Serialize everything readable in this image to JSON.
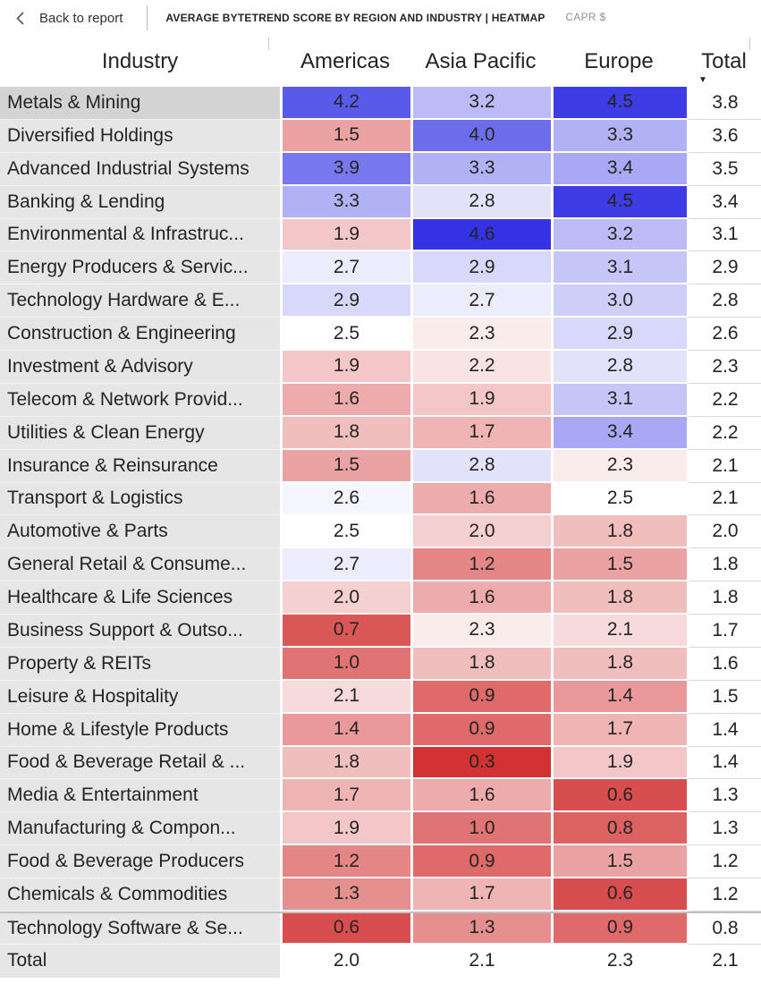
{
  "top_bar": {
    "back_label": "Back to report",
    "title": "AVERAGE BYTETREND SCORE BY REGION AND INDUSTRY | HEATMAP",
    "badge": "CAPR $"
  },
  "matrix": {
    "row_header": "Industry",
    "sort": {
      "column": "Total",
      "direction": "descending",
      "icon": "▼"
    },
    "highlighted_row_index": 0
  },
  "chart_data": {
    "type": "heatmap",
    "title": "Average ByteTrend Score by Region and Industry",
    "columns": [
      "Americas",
      "Asia Pacific",
      "Europe",
      "Total"
    ],
    "value_format": "0.0",
    "colorscale": {
      "min": 0.3,
      "mid": 2.5,
      "max": 4.6,
      "min_color": "#d23232",
      "mid_color": "#ffffff",
      "max_color": "#3333e5",
      "total_column_uncolored": true
    },
    "rows": [
      {
        "industry": "Metals & Mining",
        "values": [
          4.2,
          3.2,
          4.5,
          3.8
        ]
      },
      {
        "industry": "Diversified Holdings",
        "values": [
          1.5,
          4.0,
          3.3,
          3.6
        ]
      },
      {
        "industry": "Advanced Industrial Systems",
        "values": [
          3.9,
          3.3,
          3.4,
          3.5
        ]
      },
      {
        "industry": "Banking & Lending",
        "values": [
          3.3,
          2.8,
          4.5,
          3.4
        ]
      },
      {
        "industry": "Environmental & Infrastruc...",
        "values": [
          1.9,
          4.6,
          3.2,
          3.1
        ]
      },
      {
        "industry": "Energy Producers & Servic...",
        "values": [
          2.7,
          2.9,
          3.1,
          2.9
        ]
      },
      {
        "industry": "Technology Hardware & E...",
        "values": [
          2.9,
          2.7,
          3.0,
          2.8
        ]
      },
      {
        "industry": "Construction & Engineering",
        "values": [
          2.5,
          2.3,
          2.9,
          2.6
        ]
      },
      {
        "industry": "Investment & Advisory",
        "values": [
          1.9,
          2.2,
          2.8,
          2.3
        ]
      },
      {
        "industry": "Telecom & Network Provid...",
        "values": [
          1.6,
          1.9,
          3.1,
          2.2
        ]
      },
      {
        "industry": "Utilities & Clean Energy",
        "values": [
          1.8,
          1.7,
          3.4,
          2.2
        ]
      },
      {
        "industry": "Insurance & Reinsurance",
        "values": [
          1.5,
          2.8,
          2.3,
          2.1
        ]
      },
      {
        "industry": "Transport & Logistics",
        "values": [
          2.6,
          1.6,
          2.5,
          2.1
        ]
      },
      {
        "industry": "Automotive & Parts",
        "values": [
          2.5,
          2.0,
          1.8,
          2.0
        ]
      },
      {
        "industry": "General Retail & Consume...",
        "values": [
          2.7,
          1.2,
          1.5,
          1.8
        ]
      },
      {
        "industry": "Healthcare & Life Sciences",
        "values": [
          2.0,
          1.6,
          1.8,
          1.8
        ]
      },
      {
        "industry": "Business Support & Outso...",
        "values": [
          0.7,
          2.3,
          2.1,
          1.7
        ]
      },
      {
        "industry": "Property & REITs",
        "values": [
          1.0,
          1.8,
          1.8,
          1.6
        ]
      },
      {
        "industry": "Leisure & Hospitality",
        "values": [
          2.1,
          0.9,
          1.4,
          1.5
        ]
      },
      {
        "industry": "Home & Lifestyle Products",
        "values": [
          1.4,
          0.9,
          1.7,
          1.4
        ]
      },
      {
        "industry": "Food & Beverage Retail & ...",
        "values": [
          1.8,
          0.3,
          1.9,
          1.4
        ]
      },
      {
        "industry": "Media & Entertainment",
        "values": [
          1.7,
          1.6,
          0.6,
          1.3
        ]
      },
      {
        "industry": "Manufacturing & Compon...",
        "values": [
          1.9,
          1.0,
          0.8,
          1.3
        ]
      },
      {
        "industry": "Food & Beverage Producers",
        "values": [
          1.2,
          0.9,
          1.5,
          1.2
        ]
      },
      {
        "industry": "Chemicals & Commodities",
        "values": [
          1.3,
          1.7,
          0.6,
          1.2
        ]
      },
      {
        "industry": "Technology Software & Se...",
        "values": [
          0.6,
          1.3,
          0.9,
          0.8
        ]
      }
    ],
    "total_row": {
      "industry": "Total",
      "values": [
        2.0,
        2.1,
        2.3,
        2.1
      ]
    }
  }
}
